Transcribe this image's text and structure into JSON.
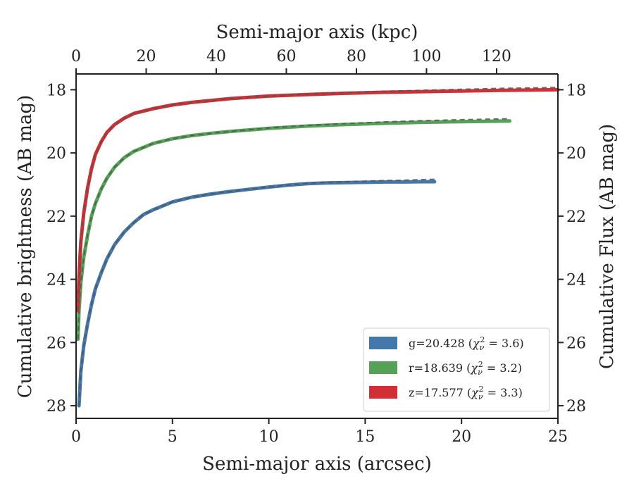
{
  "chart_data": {
    "type": "line",
    "xlabel": "Semi-major axis (arcsec)",
    "x2label": "Semi-major axis (kpc)",
    "ylabel": "Cumulative brightness (AB mag)",
    "y2label": "Cumulative Flux (AB mag)",
    "xlim": [
      0,
      25
    ],
    "x2lim": [
      0,
      137.5
    ],
    "ylim": [
      28.4,
      17.5
    ],
    "y_inverted": true,
    "xticks": [
      "0",
      "5",
      "10",
      "15",
      "20",
      "25"
    ],
    "x2ticks": [
      "0",
      "20",
      "40",
      "60",
      "80",
      "100",
      "120"
    ],
    "yticks": [
      "18",
      "20",
      "22",
      "24",
      "26",
      "28"
    ],
    "grid": false,
    "legend_position": "lower-right",
    "series": [
      {
        "name": "g=20.428",
        "chi_label": "3.6",
        "color": "#4477aa",
        "x": [
          0.15,
          0.25,
          0.4,
          0.6,
          0.8,
          1.0,
          1.3,
          1.6,
          2.0,
          2.5,
          3.0,
          3.5,
          4.0,
          5.0,
          6.0,
          7.0,
          8.0,
          9.0,
          10.0,
          11.0,
          12.0,
          13.0,
          14.0,
          15.0,
          16.0,
          17.0,
          18.0,
          18.6
        ],
        "y": [
          28.0,
          26.9,
          26.1,
          25.4,
          24.8,
          24.3,
          23.8,
          23.35,
          22.9,
          22.5,
          22.2,
          21.95,
          21.8,
          21.55,
          21.4,
          21.3,
          21.22,
          21.15,
          21.08,
          21.02,
          20.97,
          20.95,
          20.94,
          20.93,
          20.92,
          20.92,
          20.91,
          20.91
        ]
      },
      {
        "name": "r=18.639",
        "chi_label": "3.2",
        "color": "#55a257",
        "x": [
          0.1,
          0.15,
          0.25,
          0.4,
          0.6,
          0.8,
          1.0,
          1.3,
          1.6,
          2.0,
          2.5,
          3.0,
          4.0,
          5.0,
          6.0,
          7.0,
          8.0,
          10.0,
          12.0,
          14.0,
          16.0,
          18.0,
          20.0,
          22.5
        ],
        "y": [
          25.9,
          25.0,
          24.1,
          23.3,
          22.6,
          22.0,
          21.6,
          21.15,
          20.8,
          20.45,
          20.15,
          19.95,
          19.7,
          19.55,
          19.45,
          19.38,
          19.32,
          19.22,
          19.15,
          19.1,
          19.06,
          19.03,
          19.01,
          18.99
        ]
      },
      {
        "name": "z=17.577",
        "chi_label": "3.3",
        "color": "#d03035",
        "x": [
          0.1,
          0.15,
          0.25,
          0.4,
          0.6,
          0.8,
          1.0,
          1.3,
          1.6,
          2.0,
          2.5,
          3.0,
          4.0,
          5.0,
          6.0,
          8.0,
          10.0,
          12.0,
          14.0,
          16.0,
          18.0,
          20.0,
          22.0,
          25.0
        ],
        "y": [
          25.0,
          23.9,
          22.8,
          21.9,
          21.1,
          20.5,
          20.05,
          19.65,
          19.35,
          19.1,
          18.9,
          18.75,
          18.6,
          18.48,
          18.4,
          18.28,
          18.2,
          18.15,
          18.11,
          18.08,
          18.06,
          18.04,
          18.02,
          18.0
        ]
      }
    ]
  }
}
